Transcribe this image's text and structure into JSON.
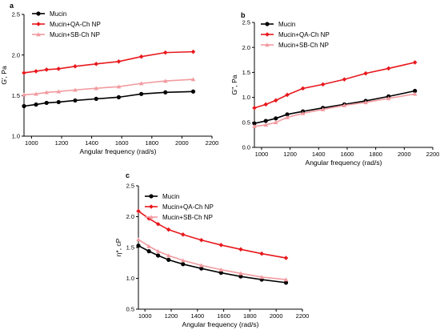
{
  "chart_data": [
    {
      "type": "line",
      "panel_label": "a",
      "xlabel": "Angular frequency (rad/s)",
      "ylabel": "G', Pa",
      "xlim": [
        950,
        2200
      ],
      "ylim": [
        1.0,
        2.5
      ],
      "xticks": [
        "1000",
        "1200",
        "1400",
        "1600",
        "1800",
        "2000",
        "2200"
      ],
      "yticks": [
        "1.0",
        "1.5",
        "2.0",
        "2.5"
      ],
      "legend_position": "top-left",
      "x": [
        950,
        1030,
        1100,
        1180,
        1290,
        1430,
        1580,
        1730,
        1890,
        2075
      ],
      "series": [
        {
          "name": "Mucin",
          "color": "#000000",
          "marker": "circle",
          "values": [
            1.37,
            1.39,
            1.41,
            1.42,
            1.44,
            1.46,
            1.48,
            1.52,
            1.54,
            1.55
          ]
        },
        {
          "name": "Mucin+QA-Ch NP",
          "color": "#e8181d",
          "marker": "diamond",
          "values": [
            1.78,
            1.8,
            1.82,
            1.83,
            1.86,
            1.89,
            1.92,
            1.98,
            2.03,
            2.04
          ]
        },
        {
          "name": "Mucin+SB-Ch NP",
          "color": "#f29ba0",
          "marker": "triangle",
          "values": [
            1.51,
            1.52,
            1.54,
            1.55,
            1.57,
            1.59,
            1.61,
            1.65,
            1.68,
            1.7
          ]
        }
      ]
    },
    {
      "type": "line",
      "panel_label": "b",
      "xlabel": "Angular frequency (rad/s)",
      "ylabel": "G'', Pa",
      "xlim": [
        950,
        2200
      ],
      "ylim": [
        0.0,
        2.5
      ],
      "xticks": [
        "1000",
        "1200",
        "1400",
        "1600",
        "1800",
        "2000",
        "2200"
      ],
      "yticks": [
        "0.0",
        "0.5",
        "1.0",
        "1.5",
        "2.0",
        "2.5"
      ],
      "legend_position": "top-left",
      "x": [
        950,
        1030,
        1100,
        1180,
        1290,
        1430,
        1580,
        1730,
        1890,
        2075
      ],
      "series": [
        {
          "name": "Mucin",
          "color": "#000000",
          "marker": "circle",
          "values": [
            0.48,
            0.53,
            0.58,
            0.66,
            0.72,
            0.79,
            0.86,
            0.93,
            1.02,
            1.13
          ]
        },
        {
          "name": "Mucin+QA-Ch NP",
          "color": "#e8181d",
          "marker": "diamond",
          "values": [
            0.79,
            0.86,
            0.94,
            1.05,
            1.18,
            1.26,
            1.36,
            1.48,
            1.58,
            1.7
          ]
        },
        {
          "name": "Mucin+SB-Ch NP",
          "color": "#f29ba0",
          "marker": "triangle",
          "values": [
            0.42,
            0.45,
            0.5,
            0.6,
            0.68,
            0.76,
            0.84,
            0.9,
            0.98,
            1.07
          ]
        }
      ]
    },
    {
      "type": "line",
      "panel_label": "c",
      "xlabel": "Angular frequency (rad/s)",
      "ylabel": "η*, cP",
      "xlim": [
        950,
        2200
      ],
      "ylim": [
        0.5,
        2.5
      ],
      "xticks": [
        "1000",
        "1200",
        "1400",
        "1600",
        "1800",
        "2000",
        "2200"
      ],
      "yticks": [
        "0.5",
        "1.0",
        "1.5",
        "2.0",
        "2.5"
      ],
      "legend_position": "top-left",
      "x": [
        950,
        1030,
        1100,
        1180,
        1290,
        1430,
        1580,
        1730,
        1890,
        2075
      ],
      "series": [
        {
          "name": "Mucin",
          "color": "#000000",
          "marker": "circle",
          "values": [
            1.53,
            1.44,
            1.37,
            1.3,
            1.23,
            1.16,
            1.09,
            1.03,
            0.98,
            0.93
          ]
        },
        {
          "name": "Mucin+QA-Ch NP",
          "color": "#e8181d",
          "marker": "diamond",
          "values": [
            2.09,
            1.97,
            1.88,
            1.79,
            1.71,
            1.62,
            1.54,
            1.47,
            1.4,
            1.33
          ]
        },
        {
          "name": "Mucin+SB-Ch NP",
          "color": "#f29ba0",
          "marker": "triangle",
          "values": [
            1.63,
            1.52,
            1.44,
            1.37,
            1.29,
            1.21,
            1.14,
            1.08,
            1.02,
            0.98
          ]
        }
      ]
    }
  ]
}
